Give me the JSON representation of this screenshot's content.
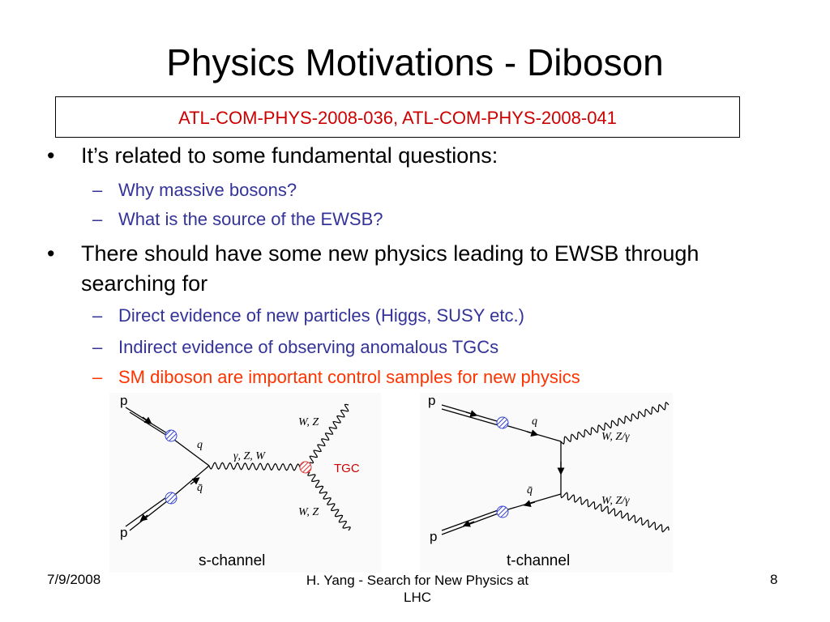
{
  "title": "Physics Motivations - Diboson",
  "reference": "ATL-COM-PHYS-2008-036,  ATL-COM-PHYS-2008-041",
  "bullets": [
    {
      "text": "It’s related to some fundamental questions:",
      "subitems": [
        "Why massive bosons?",
        "What is the source of the EWSB?"
      ]
    },
    {
      "text": "There should have some new physics leading to EWSB through searching for",
      "subitems": [
        "Direct evidence of new particles (Higgs, SUSY etc.)",
        "Indirect evidence of observing anomalous TGCs",
        "SM diboson are important control samples for new physics"
      ]
    }
  ],
  "diagrams": [
    {
      "caption": "s-channel",
      "labels": [
        "p",
        "q",
        "q̄",
        "p",
        "γ, Z, W",
        "W, Z",
        "W, Z",
        "TGC"
      ]
    },
    {
      "caption": "t-channel",
      "labels": [
        "p",
        "q",
        "q̄",
        "p",
        "W, Z/γ",
        "W, Z/γ"
      ]
    }
  ],
  "footer": {
    "date": "7/9/2008",
    "center": "H. Yang - Search for New Physics at LHC",
    "page": "8"
  }
}
